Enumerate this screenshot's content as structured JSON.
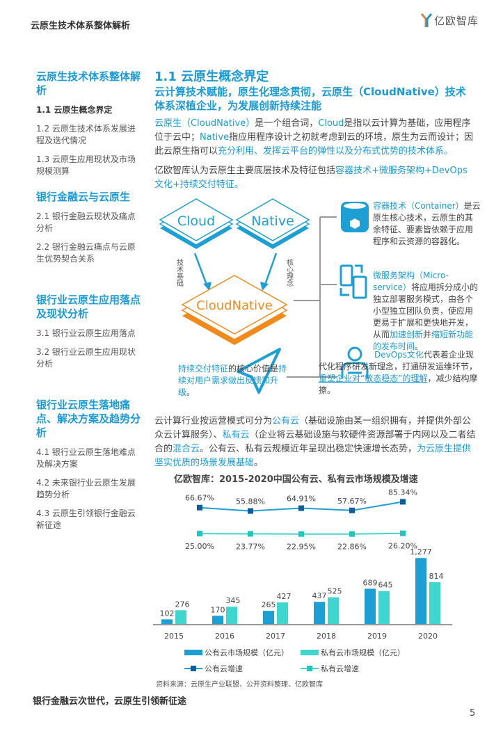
{
  "header": {
    "title": "云原生技术体系整体解析",
    "logo_text": "亿欧智库"
  },
  "sidebar": {
    "sections": [
      {
        "title": "云原生技术体系整体解析",
        "items": [
          {
            "label": "1.1 云原生概念界定",
            "active": true
          },
          {
            "label": "1.2 云原生技术体系发展进程及迭代情况"
          },
          {
            "label": "1.3 云原生应用现状及市场规模测算"
          }
        ]
      },
      {
        "title": "银行金融云与云原生",
        "items": [
          {
            "label": "2.1 银行金融云现状及痛点分析"
          },
          {
            "label": "2.2 银行金融云痛点与云原生优势契合关系"
          }
        ]
      },
      {
        "title": "银行业云原生应用落点及现状分析",
        "items": [
          {
            "label": "3.1 银行业云原生应用落点"
          },
          {
            "label": "3.2 银行业云原生应用现状分析"
          }
        ]
      },
      {
        "title": "银行业云原生落地痛点、解决方案及趋势分析",
        "items": [
          {
            "label": "4.1 银行业云原生落地难点及解决方案"
          },
          {
            "label": "4.2 未来银行业云原生发展趋势分析"
          },
          {
            "label": "4.3 云原生引领银行金融云新征途"
          }
        ]
      }
    ]
  },
  "main": {
    "section_title": "1.1 云原生概念界定",
    "subtitle": "云计算技术赋能，原生化理念贯彻，云原生（CloudNative）技术体系深植企业，为发展创新持续注能",
    "para1": {
      "a": "云原生（CloudNative）",
      "b": "是一个组合词，",
      "c": "Cloud",
      "d": "是指以云计算为基础，应用程序位于云中；",
      "e": "Native",
      "f": "指应用程序设计之初就考虑到云的环境，原生为云而设计；因此云原生指可以",
      "g": "充分利用、发挥云平台的弹性以及分布式优势的技术体系。"
    },
    "para2": {
      "a": "亿欧智库认为云原生主要底层技术及特征包括",
      "b": "容器技术+微服务架构+DevOps文化+持续交付特征。"
    },
    "diagram": {
      "cloud": "Cloud",
      "native": "Native",
      "cloudnative": "CloudNative",
      "left_arrow_label": "技术基础",
      "right_arrow_label": "核心理念",
      "container": {
        "title": "容器技术（Container）",
        "text": "是云原生核心技术，云原生的其余特征、要素皆依赖于应用程序和云资源的容器化。"
      },
      "microservice": {
        "title": "微服务架构（Micro-service）",
        "text1": "将应用拆分成小的独立部署服务模式，由各个小型独立团队负责，使应用更易于扩展和更快地开发，从而",
        "hl1": "加速创新",
        "text2": "并",
        "hl2": "缩短新功能的发布时间",
        "text3": "。"
      },
      "devops": {
        "title": "DevOps文化",
        "text1": "代表着企业现代化程序研发新理念，打通研发运维环节，",
        "hl": "重塑企业对“敏态稳态”的理解",
        "text2": "，减少结构摩擦。"
      },
      "cd": {
        "hl1": "持续交付特征",
        "t1": "的核心价值是",
        "hl2": "持续对用户需求做出反馈和升级",
        "t2": "。"
      }
    },
    "para3": {
      "a": "云计算行业按运营模式可分为",
      "b": "公有云",
      "c": "（基础设施由某一组织拥有，并提供外部公众云计算服务）、",
      "d": "私有云",
      "e": "（企业将云基础设施与软硬件资源部署于内网以及二者结合的",
      "f": "混合云",
      "g": "。公有云、私有云规模近年呈现出稳定快速增长态势，",
      "h": "为云原生提供坚实优质的场景发展基础",
      "i": "。"
    }
  },
  "chart_data": {
    "type": "bar",
    "title": "亿欧智库：2015-2020中国公有云、私有云市场规模及增速",
    "categories": [
      "2015",
      "2016",
      "2017",
      "2018",
      "2019",
      "2020"
    ],
    "series": [
      {
        "name": "公有云市场规模（亿元）",
        "type": "bar",
        "color": "#1e9fd4",
        "values": [
          102,
          170,
          265,
          437,
          689,
          1277
        ]
      },
      {
        "name": "私有云市场规模（亿元）",
        "type": "bar",
        "color": "#3fd6d0",
        "values": [
          276,
          345,
          427,
          525,
          645,
          814
        ]
      },
      {
        "name": "公有云增速",
        "type": "line",
        "color": "#0d5d9c",
        "values": [
          null,
          66.67,
          55.88,
          64.91,
          57.67,
          85.34
        ],
        "labels": [
          "",
          "66.67%",
          "55.88%",
          "64.91%",
          "57.67%",
          "85.34%"
        ]
      },
      {
        "name": "私有云增速",
        "type": "line",
        "color": "#22c4c0",
        "values": [
          null,
          25.0,
          23.77,
          22.95,
          22.86,
          26.2
        ],
        "labels": [
          "",
          "25.00%",
          "23.77%",
          "22.95%",
          "22.86%",
          "26.20%"
        ]
      }
    ],
    "bar_labels": {
      "public": [
        "102",
        "170",
        "265",
        "437",
        "689",
        "1,277"
      ],
      "private": [
        "276",
        "345",
        "427",
        "525",
        "645",
        "814"
      ]
    },
    "source": "资料来源：云原生产业联盟、公开资料整理、亿欧智库"
  },
  "footer": {
    "title": "银行金融云次世代，云原生引领新征途",
    "page": "5"
  }
}
